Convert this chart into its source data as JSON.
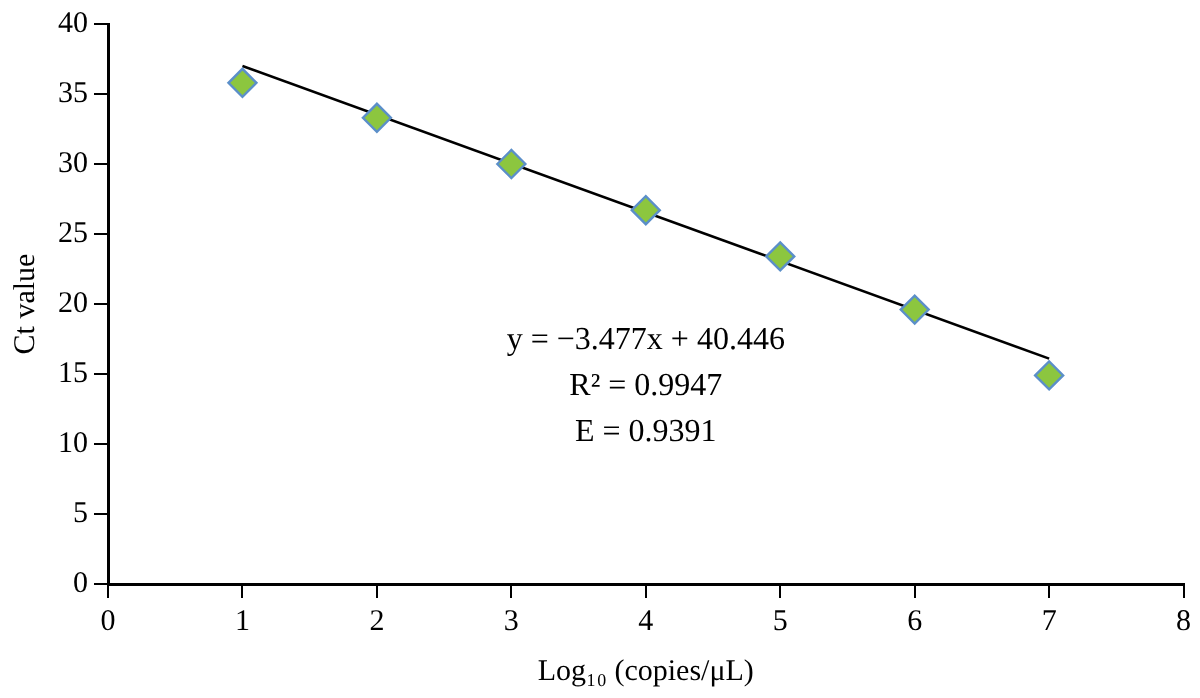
{
  "chart_data": {
    "type": "scatter",
    "xlabel": "Log₁₀ (copies/μL)",
    "ylabel": "Ct value",
    "x": [
      1,
      2,
      3,
      4,
      5,
      6,
      7
    ],
    "series": [
      {
        "color": "#8cc63f",
        "marker": "diamond",
        "values": [
          35.8,
          33.3,
          30.0,
          26.7,
          23.4,
          19.6,
          14.9
        ]
      },
      {
        "type": "line",
        "color": "#000000",
        "marker": "none",
        "x": [
          1,
          7
        ],
        "values": [
          37.0,
          16.1
        ]
      }
    ],
    "xlim": [
      0,
      8
    ],
    "xticks": [
      0,
      1,
      2,
      3,
      4,
      5,
      6,
      7,
      8
    ],
    "ylim": [
      0,
      40
    ],
    "yticks": [
      0,
      5,
      10,
      15,
      20,
      25,
      30,
      35,
      40
    ],
    "annotations": [
      "y = −3.477x + 40.446",
      "R² = 0.9947",
      "E = 0.9391"
    ]
  }
}
